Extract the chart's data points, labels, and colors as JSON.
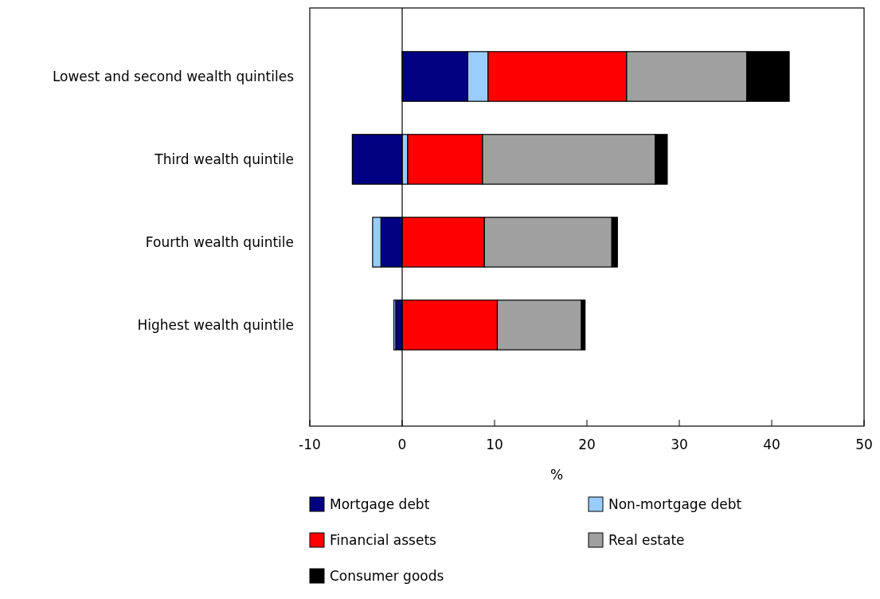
{
  "chart_data": {
    "type": "bar",
    "orientation": "horizontal",
    "stacked": true,
    "xlabel": "%",
    "categories": [
      "Lowest and second wealth quintiles",
      "Third wealth quintile",
      "Fourth wealth quintile",
      "Highest wealth quintile"
    ],
    "series": [
      {
        "name": "Mortgage debt",
        "color": "#000080",
        "values": [
          7.1,
          -5.4,
          -2.3,
          -0.7
        ]
      },
      {
        "name": "Non-mortgage debt",
        "color": "#99ccff",
        "values": [
          2.2,
          0.6,
          -0.9,
          -0.2
        ]
      },
      {
        "name": "Financial assets",
        "color": "#ff0000",
        "values": [
          15.0,
          8.1,
          8.9,
          10.3
        ]
      },
      {
        "name": "Real estate",
        "color": "#a0a0a0",
        "values": [
          13.0,
          18.7,
          13.8,
          9.1
        ]
      },
      {
        "name": "Consumer goods",
        "color": "#000000",
        "values": [
          4.6,
          1.3,
          0.6,
          0.4
        ]
      }
    ],
    "xlim": [
      -10,
      50
    ],
    "xticks": [
      -10,
      0,
      10,
      20,
      30,
      40,
      50
    ],
    "ref_lines": [
      {
        "axis": "x",
        "value": 0
      }
    ],
    "grid": false,
    "legend": "bottom"
  }
}
